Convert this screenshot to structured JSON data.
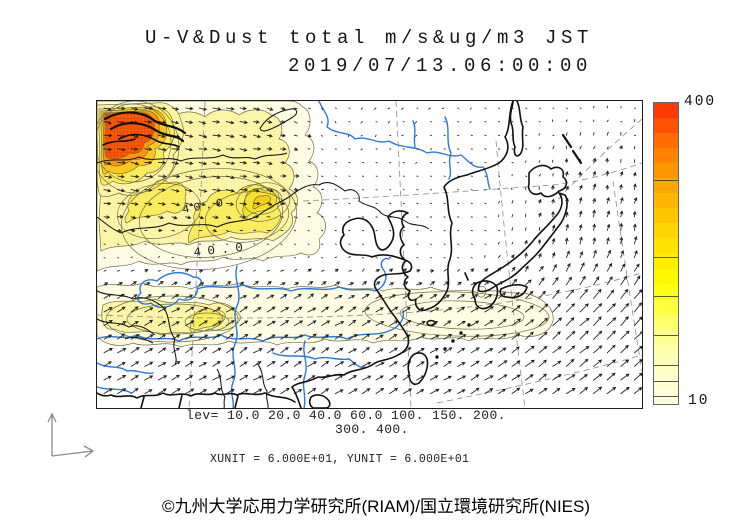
{
  "title": {
    "line1": "U-V&Dust total m/s&ug/m3 JST",
    "line2": "2019/07/13.06:00:00"
  },
  "map": {
    "contour_labels": [
      {
        "text": "40.0"
      },
      {
        "text": "40.0"
      }
    ],
    "colors": {
      "river": "#2b79e0",
      "coastline": "#111111",
      "graticule": "#8a8a8a",
      "contour_line": "#72713e",
      "fill_pale": "#fffde6",
      "fill_light": "#fdf5a8",
      "fill_bright": "#faee60",
      "fill_deep": "#f6e22c",
      "fill_gold": "#f0cf16",
      "plume_gold": "#ffc61e",
      "plume_orange": "#ff9612",
      "plume_core": "#ff5a00"
    }
  },
  "colorbar": {
    "max_label": "400",
    "min_label": "10",
    "range": [
      10,
      400
    ],
    "unit_levels": [
      10,
      20,
      40,
      60,
      100,
      150,
      200,
      300,
      400
    ],
    "divider_levels": [
      300,
      200,
      150,
      100,
      60,
      40,
      20
    ],
    "colors": [
      "#FF3A00",
      "#FF5200",
      "#FF6C00",
      "#FF8200",
      "#FF9600",
      "#FFA600",
      "#FFB600",
      "#FFC600",
      "#FFD400",
      "#FFE200",
      "#FFEE00",
      "#FFF800",
      "#FFFF10",
      "#FFFF3E",
      "#FFFF6A",
      "#FFFF8E",
      "#FFFFAC",
      "#FFFFC2",
      "#FFFFD2",
      "#FFFFDE"
    ]
  },
  "legend": {
    "line1": "lev= 10.0 20.0 40.0 60.0 100. 150. 200.",
    "line2": "300. 400.",
    "units": "XUNIT = 6.000E+01, YUNIT = 6.000E+01"
  },
  "footer": {
    "copyright": "©九州大学応用力学研究所(RIAM)/国立環境研究所(NIES)"
  }
}
